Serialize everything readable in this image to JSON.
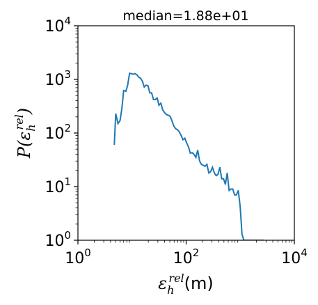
{
  "chart_data": {
    "type": "line",
    "title": "median=1.88e+01",
    "xscale": "log",
    "yscale": "log",
    "xlim": [
      1,
      10000
    ],
    "ylim": [
      1,
      10000
    ],
    "grid": false,
    "xlabel": {
      "symbol": "ε",
      "subscript": "h",
      "superscript": "rel",
      "unit": "(m)"
    },
    "ylabel": {
      "prefix": "P(",
      "symbol": "ε",
      "subscript": "h",
      "superscript": "rel",
      "suffix": ")"
    },
    "x_ticks": [
      {
        "base": "10",
        "exp": "0",
        "value": 1
      },
      {
        "base": "10",
        "exp": "2",
        "value": 100
      },
      {
        "base": "10",
        "exp": "4",
        "value": 10000
      }
    ],
    "y_ticks": [
      {
        "base": "10",
        "exp": "0",
        "value": 1
      },
      {
        "base": "10",
        "exp": "1",
        "value": 10
      },
      {
        "base": "10",
        "exp": "2",
        "value": 100
      },
      {
        "base": "10",
        "exp": "3",
        "value": 1000
      },
      {
        "base": "10",
        "exp": "4",
        "value": 10000
      }
    ],
    "series_color": "#1f77b4",
    "series": [
      {
        "x": [
          4.7,
          5.0,
          5.5,
          6.0,
          6.5,
          7.0,
          7.7,
          8.3,
          9.0,
          9.7,
          10.5,
          11.3,
          12.3,
          13.3,
          14.4,
          15.6,
          16.8,
          18.2,
          19.7,
          21.3,
          23.0,
          24.9,
          26.9,
          29.1,
          31.5,
          34.1,
          36.9,
          39.9,
          43.2,
          46.7,
          50.5,
          54.6,
          59.1,
          63.9,
          69.1,
          74.7,
          80.8,
          87.4,
          94.6,
          102.3,
          110.6,
          119.7,
          129.4,
          140.0,
          151.4,
          163.8,
          177.2,
          191.6,
          207.3,
          224.2,
          242.5,
          262.3,
          283.7,
          306.9,
          332.0,
          359.1,
          388.4,
          420.1,
          454.4,
          491.5,
          531.7,
          575.1,
          622.1,
          672.9,
          727.8,
          787.3,
          851.6,
          921.1,
          996.3,
          1077.6,
          1165.6,
          1260.8,
          1363.8,
          1475.2,
          1595.7,
          1726.0,
          1867.0,
          2019.5,
          2184.5,
          2363.0,
          2556.0,
          2764.7
        ],
        "y": [
          60,
          230,
          150,
          170,
          290,
          620,
          600,
          780,
          1300,
          1280,
          1250,
          1280,
          1220,
          1100,
          1050,
          920,
          720,
          780,
          760,
          560,
          560,
          420,
          420,
          450,
          330,
          360,
          270,
          240,
          220,
          215,
          205,
          170,
          135,
          120,
          115,
          105,
          90,
          75,
          80,
          65,
          55,
          42,
          43,
          40,
          35,
          48,
          30,
          26,
          25,
          24,
          26,
          18,
          19,
          23,
          18,
          16,
          17,
          23,
          14,
          14,
          11,
          18,
          8.5,
          9,
          9,
          7,
          7,
          8.5,
          4.3,
          1.3,
          1.0,
          1.0,
          1.0,
          1.0,
          1.0,
          1.0,
          1.0,
          1.0,
          1.0,
          1.0,
          1.0,
          1.0
        ]
      }
    ]
  }
}
